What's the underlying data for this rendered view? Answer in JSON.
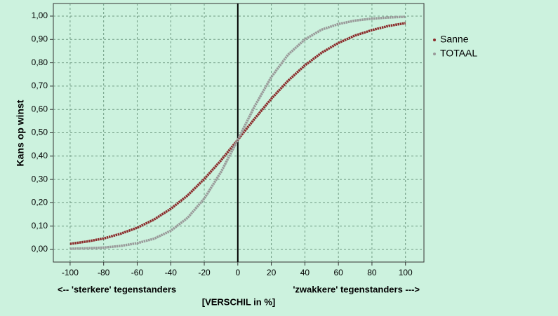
{
  "chart_data": {
    "type": "line",
    "ylabel": "Kans op winst",
    "xlabel": "[VERSCHIL in %]",
    "annotations": [
      "<-- 'sterkere' tegenstanders",
      "'zwakkere' tegenstanders --->"
    ],
    "x": [
      -100,
      -90,
      -80,
      -70,
      -60,
      -50,
      -40,
      -30,
      -20,
      -10,
      0,
      10,
      20,
      30,
      40,
      50,
      60,
      70,
      80,
      90,
      100
    ],
    "series": [
      {
        "name": "Sanne",
        "color": "#8b2b2b",
        "values": [
          0.024,
          0.034,
          0.047,
          0.067,
          0.093,
          0.128,
          0.174,
          0.231,
          0.302,
          0.382,
          0.47,
          0.56,
          0.646,
          0.723,
          0.789,
          0.843,
          0.885,
          0.917,
          0.94,
          0.958,
          0.97
        ]
      },
      {
        "name": "TOTAAL",
        "color": "#999999",
        "values": [
          0.003,
          0.005,
          0.008,
          0.015,
          0.027,
          0.046,
          0.08,
          0.135,
          0.218,
          0.332,
          0.47,
          0.613,
          0.739,
          0.835,
          0.9,
          0.942,
          0.966,
          0.981,
          0.989,
          0.994,
          0.997
        ]
      }
    ],
    "xlim": [
      -110,
      111
    ],
    "xticks": [
      -100,
      -80,
      -60,
      -40,
      -20,
      0,
      20,
      40,
      60,
      80,
      100
    ],
    "ylim": [
      -0.054,
      1.054
    ],
    "yticks": [
      {
        "value": 0,
        "label": "0,00"
      },
      {
        "value": 0.1,
        "label": "0,10"
      },
      {
        "value": 0.2,
        "label": "0,20"
      },
      {
        "value": 0.3,
        "label": "0,30"
      },
      {
        "value": 0.4,
        "label": "0,40"
      },
      {
        "value": 0.5,
        "label": "0,50"
      },
      {
        "value": 0.6,
        "label": "0,60"
      },
      {
        "value": 0.7,
        "label": "0,70"
      },
      {
        "value": 0.8,
        "label": "0,80"
      },
      {
        "value": 0.9,
        "label": "0,90"
      },
      {
        "value": 1,
        "label": "1,00"
      }
    ],
    "grid": true,
    "reference_line_x": 0,
    "legend": "right"
  }
}
